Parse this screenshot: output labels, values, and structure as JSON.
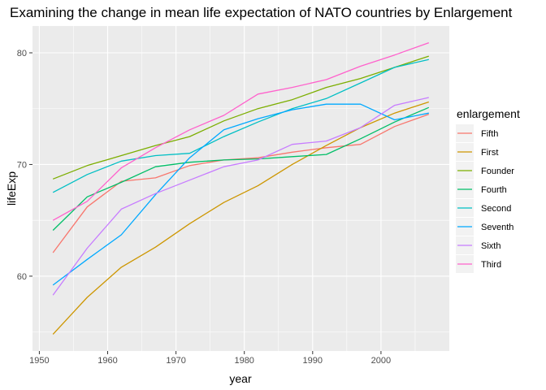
{
  "chart_data": {
    "type": "line",
    "title": "Examining the change in mean life expectation of NATO countries by Enlargement",
    "xlabel": "year",
    "ylabel": "lifeExp",
    "xlim": [
      1949,
      2010
    ],
    "ylim": [
      53.3,
      82.4
    ],
    "x_ticks": [
      1950,
      1960,
      1970,
      1980,
      1990,
      2000
    ],
    "y_ticks": [
      60,
      70,
      80
    ],
    "grid": true,
    "legend_title": "enlargement",
    "legend_position": "right",
    "x": [
      1952,
      1957,
      1962,
      1967,
      1972,
      1977,
      1982,
      1987,
      1992,
      1997,
      2002,
      2007
    ],
    "series": [
      {
        "name": "Fifth",
        "color": "#F8766D",
        "values": [
          62.1,
          66.2,
          68.5,
          68.8,
          69.9,
          70.4,
          70.6,
          71.1,
          71.5,
          71.8,
          73.4,
          74.5
        ]
      },
      {
        "name": "First",
        "color": "#CD9600",
        "values": [
          54.8,
          58.1,
          60.8,
          62.6,
          64.7,
          66.6,
          68.1,
          70.0,
          71.7,
          73.3,
          74.6,
          75.6
        ]
      },
      {
        "name": "Founder",
        "color": "#7CAE00",
        "values": [
          68.7,
          69.9,
          70.8,
          71.7,
          72.5,
          73.9,
          75.0,
          75.8,
          76.9,
          77.7,
          78.7,
          79.7
        ]
      },
      {
        "name": "Fourth",
        "color": "#00BE67",
        "values": [
          64.1,
          67.1,
          68.4,
          69.8,
          70.2,
          70.4,
          70.5,
          70.7,
          70.9,
          72.3,
          73.8,
          75.1
        ]
      },
      {
        "name": "Second",
        "color": "#00BFC4",
        "values": [
          67.5,
          69.1,
          70.3,
          70.8,
          71.0,
          72.5,
          73.8,
          75.0,
          75.9,
          77.3,
          78.7,
          79.4
        ]
      },
      {
        "name": "Seventh",
        "color": "#00A9FF",
        "values": [
          59.2,
          61.5,
          63.7,
          67.3,
          70.6,
          73.1,
          74.1,
          74.9,
          75.4,
          75.4,
          74.0,
          74.6
        ]
      },
      {
        "name": "Sixth",
        "color": "#C77CFF",
        "values": [
          58.3,
          62.5,
          66.0,
          67.4,
          68.6,
          69.8,
          70.4,
          71.8,
          72.1,
          73.3,
          75.3,
          76.0
        ]
      },
      {
        "name": "Third",
        "color": "#FF61CC",
        "values": [
          65.0,
          66.7,
          69.7,
          71.5,
          73.1,
          74.4,
          76.3,
          76.9,
          77.6,
          78.8,
          79.8,
          80.9
        ]
      }
    ]
  }
}
